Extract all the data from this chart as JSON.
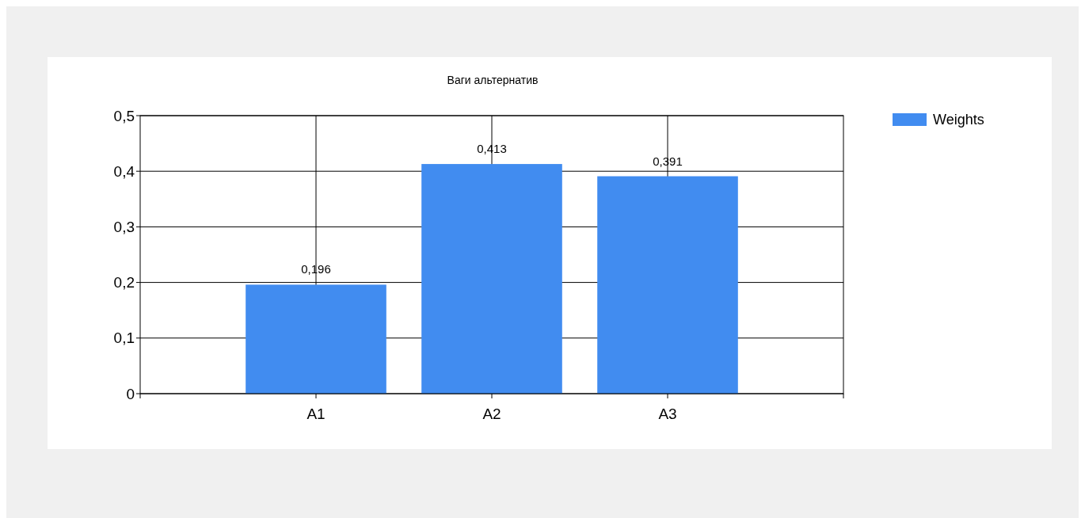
{
  "chart_data": {
    "type": "bar",
    "title": "Ваги альтернатив",
    "categories": [
      "A1",
      "A2",
      "A3"
    ],
    "series": [
      {
        "name": "Weights",
        "color": "#418cf0",
        "values": [
          0.196,
          0.413,
          0.391
        ]
      }
    ],
    "value_labels": [
      "0,196",
      "0,413",
      "0,391"
    ],
    "ylim": [
      0,
      0.5
    ],
    "yticks": [
      {
        "value": 0,
        "label": "0"
      },
      {
        "value": 0.1,
        "label": "0,1"
      },
      {
        "value": 0.2,
        "label": "0,2"
      },
      {
        "value": 0.3,
        "label": "0,3"
      },
      {
        "value": 0.4,
        "label": "0,4"
      },
      {
        "value": 0.5,
        "label": "0,5"
      }
    ],
    "grid": true,
    "legend": "top right"
  }
}
